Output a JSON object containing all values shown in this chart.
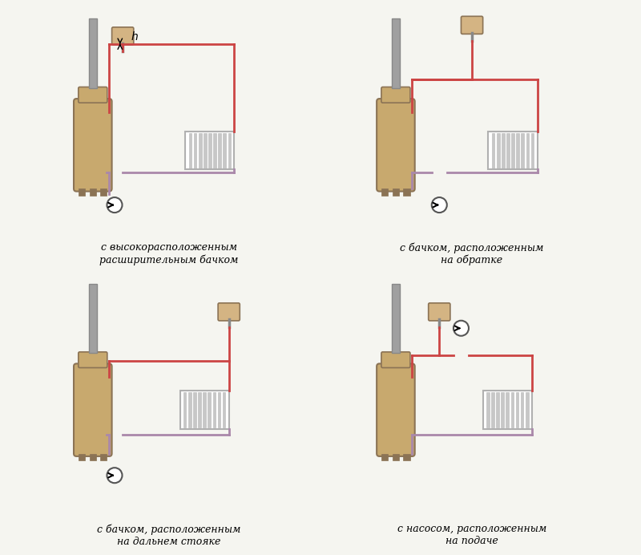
{
  "bg_color": "#f5f5f0",
  "boiler_color_body": "#c8a96e",
  "boiler_color_pipe": "#a0a0a0",
  "boiler_color_dark": "#8B7355",
  "tank_color": "#d4b483",
  "radiator_color": "#b0b0b0",
  "pipe_hot_color": "#cc4444",
  "pipe_cold_color": "#aa88aa",
  "pump_color": "#555555",
  "line_width": 2.0,
  "labels": [
    "с высокорасположенным\nрасширительным бачком",
    "с бачком, расположенным\nна обратке",
    "с бачком, расположенным\nна дальнем стояке",
    "с насосом, расположенным\nна подаче"
  ],
  "font_size": 9
}
